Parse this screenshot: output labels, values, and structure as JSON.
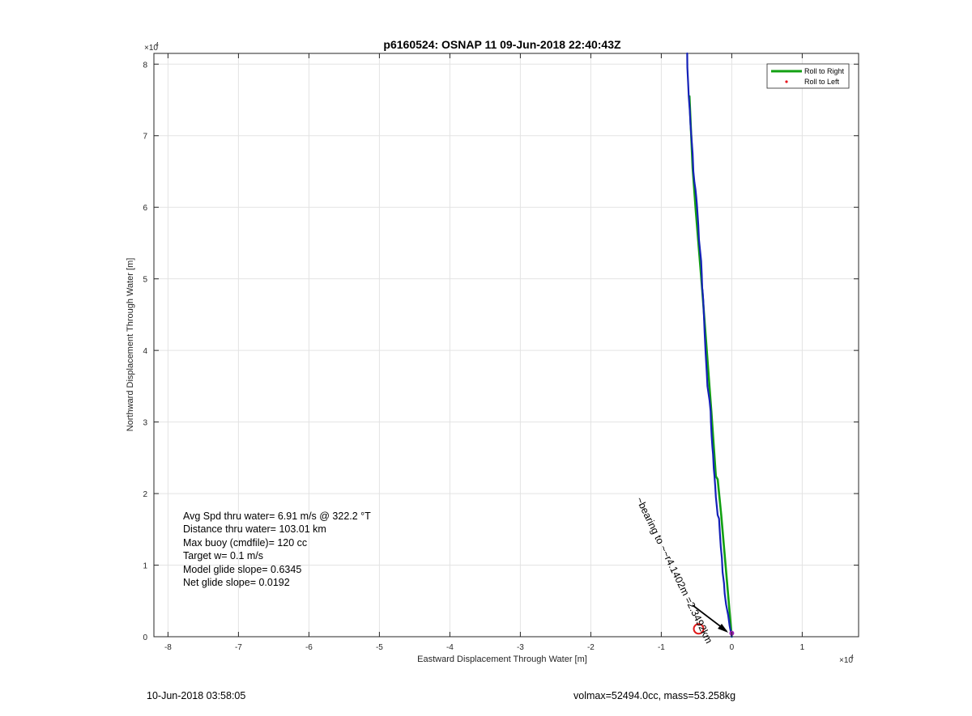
{
  "chart_data": {
    "type": "line",
    "title": "p6160524: OSNAP 11 09-Jun-2018 22:40:43Z",
    "xlabel": "Eastward Displacement Through Water [m]",
    "ylabel": "Northward Displacement Through Water [m]",
    "xlim": [
      -82000,
      18000
    ],
    "ylim": [
      0,
      81500
    ],
    "x_ticks": [
      -80000,
      -70000,
      -60000,
      -50000,
      -40000,
      -30000,
      -20000,
      -10000,
      0,
      10000
    ],
    "x_tick_labels": [
      "-8",
      "-7",
      "-6",
      "-5",
      "-4",
      "-3",
      "-2",
      "-1",
      "0",
      "1"
    ],
    "y_ticks": [
      0,
      10000,
      20000,
      30000,
      40000,
      50000,
      60000,
      70000,
      80000
    ],
    "y_tick_labels": [
      "0",
      "1",
      "2",
      "3",
      "4",
      "5",
      "6",
      "7",
      "8"
    ],
    "x_multiplier": "×10",
    "x_multiplier_exp": "4",
    "y_multiplier": "×10",
    "y_multiplier_exp": "4",
    "grid": true,
    "legend_position": "top-right",
    "legend": [
      {
        "label": "Roll to Right",
        "color": "#12a012",
        "marker": "line"
      },
      {
        "label": "Roll to Left",
        "color": "#e8161e",
        "marker": "dot"
      }
    ],
    "series": [
      {
        "color": "#12a012",
        "x": [
          0,
          -1500,
          -2000,
          -2250,
          -2900,
          -4200,
          -5100,
          -5550,
          -6000
        ],
        "y": [
          0,
          17000,
          22000,
          22400,
          31500,
          48500,
          59500,
          65500,
          75500
        ]
      },
      {
        "color": "#1421b8",
        "x": [
          0,
          -300,
          -500,
          -800,
          -1000,
          -1100,
          -1300,
          -1400,
          -1550,
          -1650,
          -1750,
          -1800,
          -2000,
          -2150,
          -2250,
          -2350,
          -2450,
          -2550,
          -2650,
          -2750,
          -2850,
          -2950,
          -3000,
          -3150,
          -3300,
          -3450,
          -3550,
          -3700,
          -3850,
          -3950,
          -4050,
          -4150,
          -4200,
          -4250,
          -4350,
          -4550,
          -4650,
          -4750,
          -4850,
          -4950,
          -5050,
          -5150,
          -5300,
          -5450,
          -5550,
          -5700,
          -5850,
          -5950,
          -6100,
          -6200,
          -6300,
          -6320
        ],
        "y": [
          0,
          1500,
          3000,
          4500,
          6000,
          7500,
          9000,
          11000,
          12500,
          14000,
          15500,
          16500,
          17000,
          18500,
          19500,
          21000,
          22400,
          23500,
          25500,
          26500,
          28000,
          30000,
          31500,
          33000,
          34000,
          35000,
          37000,
          39500,
          42500,
          45000,
          47000,
          48400,
          48600,
          50500,
          52500,
          54500,
          55500,
          57500,
          59000,
          60500,
          61500,
          62500,
          63500,
          65000,
          67500,
          69500,
          71500,
          73500,
          75500,
          77500,
          79500,
          81500
        ]
      }
    ],
    "markers": [
      {
        "name": "target-circle",
        "x": -4700,
        "y": 1100,
        "color": "#e01b1b"
      },
      {
        "name": "current-position",
        "x": 0,
        "y": 500,
        "color": "#9a23b5"
      }
    ],
    "arrow_label": "~bearing to ~~r4.1402m  =2.3492km",
    "annotations": [
      "Avg Spd thru water=  6.91 m/s @ 322.2 °T",
      "Distance thru water= 103.01 km",
      "Max buoy (cmdfile)= 120 cc",
      "Target w= 0.1 m/s",
      "Model glide slope= 0.6345",
      "Net glide slope= 0.0192"
    ],
    "footer_left": "10-Jun-2018 03:58:05",
    "footer_right": "volmax=52494.0cc, mass=53.258kg"
  }
}
